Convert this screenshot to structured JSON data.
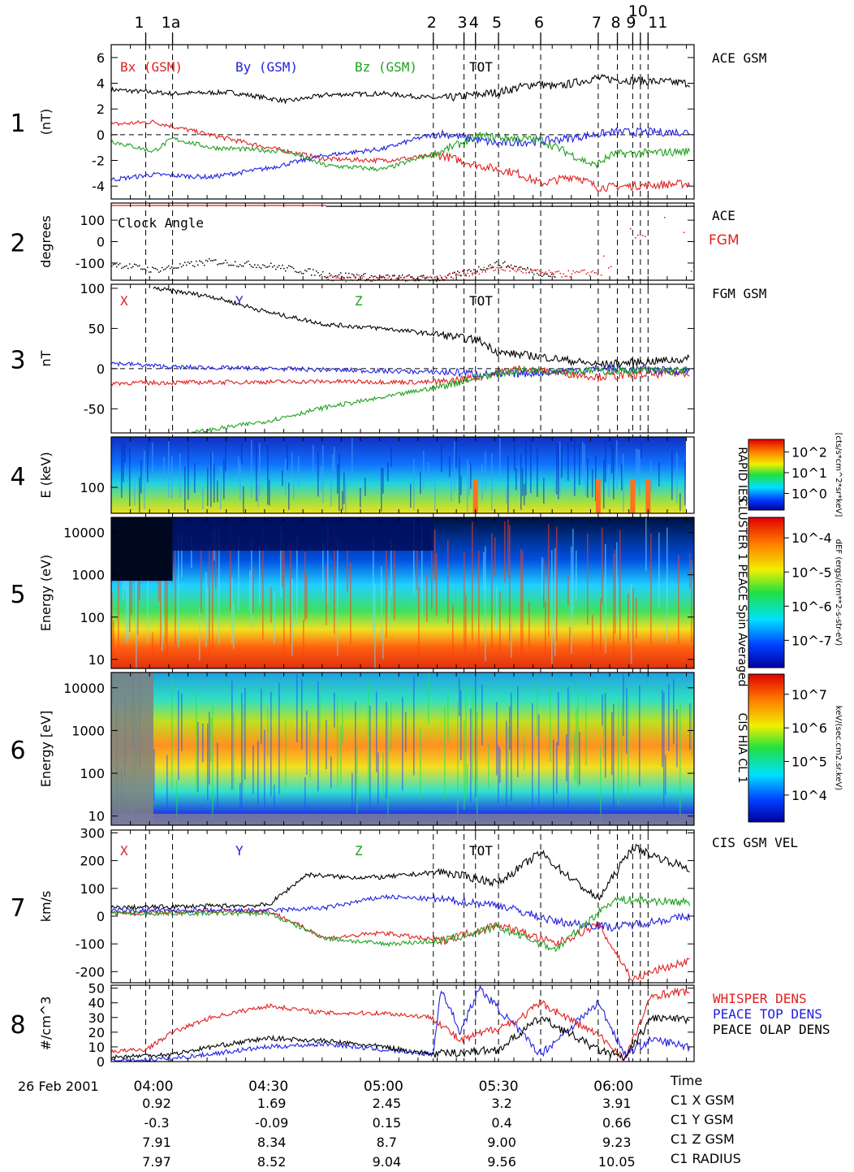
{
  "chart_data": {
    "type": "line",
    "date_label": "26 Feb 2001",
    "event_markers": [
      {
        "label": "1",
        "time": "03:58"
      },
      {
        "label": "1a",
        "time": "04:05"
      },
      {
        "label": "2",
        "time": "05:13"
      },
      {
        "label": "3",
        "time": "05:21"
      },
      {
        "label": "4",
        "time": "05:24"
      },
      {
        "label": "5",
        "time": "05:30"
      },
      {
        "label": "6",
        "time": "05:41"
      },
      {
        "label": "7",
        "time": "05:56"
      },
      {
        "label": "8",
        "time": "06:01"
      },
      {
        "label": "9",
        "time": "06:05"
      },
      {
        "label": "10",
        "time": "06:07"
      },
      {
        "label": "11",
        "time": "06:09"
      }
    ],
    "time_axis": {
      "ticks": [
        "04:00",
        "04:30",
        "05:00",
        "05:30",
        "06:00"
      ],
      "range": [
        "03:49",
        "06:21"
      ],
      "row_labels": [
        "Time",
        "C1 X GSM",
        "C1 Y GSM",
        "C1 Z GSM",
        "C1 RADIUS"
      ],
      "rows": [
        [
          "0.92",
          "1.69",
          "2.45",
          "3.2",
          "3.91"
        ],
        [
          "-0.3",
          "-0.09",
          "0.15",
          "0.4",
          "0.66"
        ],
        [
          "7.91",
          "8.34",
          "8.7",
          "9.00",
          "9.23"
        ],
        [
          "7.97",
          "8.52",
          "9.04",
          "9.56",
          "10.05"
        ]
      ]
    },
    "panels": [
      {
        "number": "1",
        "ylabel": "(nT)",
        "title": "ACE GSM",
        "ylim": [
          -5,
          7
        ],
        "yticks": [
          "6",
          "4",
          "2",
          "0",
          "-2",
          "-4"
        ],
        "legend": [
          {
            "name": "Bx (GSM)",
            "color": "#e02020"
          },
          {
            "name": "By (GSM)",
            "color": "#2020e0"
          },
          {
            "name": "Bz (GSM)",
            "color": "#20a020"
          },
          {
            "name": "TOT",
            "color": "#000000"
          }
        ],
        "series": [
          {
            "name": "TOT",
            "color": "#000000",
            "t": [
              "03:49",
              "04:05",
              "04:20",
              "04:35",
              "04:45",
              "05:00",
              "05:15",
              "05:30",
              "05:40",
              "05:45",
              "05:55",
              "06:00",
              "06:20"
            ],
            "v": [
              3.5,
              3.2,
              3.3,
              2.6,
              3.1,
              3.2,
              2.8,
              3.3,
              4.0,
              3.7,
              4.4,
              4.3,
              4.0
            ]
          },
          {
            "name": "Bx (GSM)",
            "color": "#e02020",
            "t": [
              "03:49",
              "04:00",
              "04:10",
              "04:30",
              "04:45",
              "05:00",
              "05:15",
              "05:25",
              "05:35",
              "05:41",
              "05:50",
              "05:56",
              "06:20"
            ],
            "v": [
              0.8,
              1.0,
              0.3,
              -1.0,
              -1.9,
              -2.0,
              -1.6,
              -2.4,
              -3.0,
              -3.8,
              -3.2,
              -4.1,
              -3.8
            ]
          },
          {
            "name": "By (GSM)",
            "color": "#2020e0",
            "t": [
              "03:49",
              "04:00",
              "04:15",
              "04:30",
              "04:45",
              "05:00",
              "05:10",
              "05:15",
              "05:30",
              "05:45",
              "06:00",
              "06:20"
            ],
            "v": [
              -3.5,
              -3.1,
              -3.3,
              -2.6,
              -1.6,
              -1.1,
              -0.2,
              0.1,
              -0.7,
              -0.4,
              0.2,
              0.2
            ]
          },
          {
            "name": "Bz (GSM)",
            "color": "#20a020",
            "t": [
              "03:49",
              "04:00",
              "04:05",
              "04:15",
              "04:35",
              "04:45",
              "05:00",
              "05:15",
              "05:25",
              "05:41",
              "05:55",
              "06:00",
              "06:20"
            ],
            "v": [
              -0.5,
              -1.3,
              -0.3,
              -1.0,
              -1.3,
              -2.4,
              -2.7,
              -1.3,
              -0.1,
              -0.4,
              -2.4,
              -1.5,
              -1.3
            ]
          }
        ]
      },
      {
        "number": "2",
        "ylabel": "degrees",
        "title": "Clock Angle",
        "labels_right": [
          {
            "text": "ACE",
            "color": "#000000"
          },
          {
            "text": "FGM",
            "color": "#e02020"
          }
        ],
        "ylim": [
          -180,
          180
        ],
        "yticks": [
          "100",
          "0",
          "-100"
        ],
        "series": [
          {
            "name": "ACE",
            "color": "#000000",
            "t": [
              "03:49",
              "04:00",
              "04:15",
              "04:30",
              "04:45",
              "05:00",
              "05:15",
              "05:30",
              "05:45"
            ],
            "v": [
              -100,
              -130,
              -90,
              -110,
              -150,
              -165,
              -170,
              -100,
              -160
            ]
          },
          {
            "name": "FGM",
            "color": "#e02020",
            "t": [
              "04:45",
              "05:00",
              "05:15",
              "05:30",
              "05:45",
              "05:56"
            ],
            "v": [
              -170,
              -168,
              -165,
              -120,
              -150,
              -140
            ]
          }
        ]
      },
      {
        "number": "3",
        "ylabel": "nT",
        "title": "FGM GSM",
        "ylim": [
          -80,
          105
        ],
        "yticks": [
          "100",
          "50",
          "0",
          "-50"
        ],
        "legend": [
          {
            "name": "X",
            "color": "#e02020"
          },
          {
            "name": "Y",
            "color": "#2020e0"
          },
          {
            "name": "Z",
            "color": "#20a020"
          },
          {
            "name": "TOT",
            "color": "#000000"
          }
        ],
        "series": [
          {
            "name": "TOT",
            "color": "#000000",
            "t": [
              "04:00",
              "04:15",
              "04:30",
              "04:45",
              "05:00",
              "05:15",
              "05:25",
              "05:30",
              "05:41",
              "05:56",
              "06:20"
            ],
            "v": [
              100,
              90,
              70,
              55,
              50,
              42,
              35,
              20,
              15,
              5,
              12
            ]
          },
          {
            "name": "X",
            "color": "#e02020",
            "t": [
              "03:49",
              "04:15",
              "04:45",
              "05:15",
              "05:25",
              "05:35",
              "05:56",
              "06:20"
            ],
            "v": [
              -18,
              -17,
              -16,
              -17,
              -10,
              0,
              -10,
              -5
            ]
          },
          {
            "name": "Y",
            "color": "#2020e0",
            "t": [
              "03:49",
              "04:05",
              "04:30",
              "05:00",
              "05:20",
              "05:30",
              "05:56",
              "06:20"
            ],
            "v": [
              7,
              2,
              0,
              -3,
              -5,
              -8,
              0,
              -3
            ]
          },
          {
            "name": "Z",
            "color": "#20a020",
            "t": [
              "04:10",
              "04:30",
              "04:45",
              "05:00",
              "05:15",
              "05:25",
              "05:35",
              "05:56",
              "06:20"
            ],
            "v": [
              -80,
              -65,
              -48,
              -36,
              -22,
              -10,
              -2,
              -3,
              -2
            ]
          }
        ]
      },
      {
        "number": "4",
        "ylabel": "E (keV)",
        "ytick": "100",
        "colorbar": {
          "title": "RAPID IES",
          "unit": "[cts/s*cm^2*sr*keV]",
          "ticks": [
            "10^2",
            "10^1",
            "10^0"
          ]
        }
      },
      {
        "number": "5",
        "ylabel": "Energy (eV)",
        "yticks": [
          "10000",
          "1000",
          "100",
          "10"
        ],
        "colorbar": {
          "title": "CLUSTER 1 PEACE Spin Averaged",
          "unit": "dEF (ergs/(cm**2-s-str-eV)",
          "ticks": [
            "10^-4",
            "10^-5",
            "10^-6",
            "10^-7"
          ]
        }
      },
      {
        "number": "6",
        "ylabel": "Energy [eV]",
        "yticks": [
          "10000",
          "1000",
          "100",
          "10"
        ],
        "colorbar": {
          "title": "CIS HIA CL 1",
          "unit": "keV/(sec.cm2.sr.keV)",
          "ticks": [
            "10^7",
            "10^6",
            "10^5",
            "10^4"
          ]
        }
      },
      {
        "number": "7",
        "ylabel": "km/s",
        "title": "CIS GSM VEL",
        "ylim": [
          -240,
          310
        ],
        "yticks": [
          "300",
          "200",
          "100",
          "0",
          "-100",
          "-200"
        ],
        "legend": [
          {
            "name": "X",
            "color": "#e02020"
          },
          {
            "name": "Y",
            "color": "#2020e0"
          },
          {
            "name": "Z",
            "color": "#20a020"
          },
          {
            "name": "TOT",
            "color": "#000000"
          }
        ],
        "series": [
          {
            "name": "TOT",
            "color": "#000000",
            "t": [
              "03:49",
              "04:30",
              "04:40",
              "04:50",
              "05:00",
              "05:15",
              "05:30",
              "05:41",
              "05:45",
              "05:56",
              "06:05",
              "06:10",
              "06:20"
            ],
            "v": [
              30,
              40,
              150,
              140,
              140,
              160,
              120,
              230,
              180,
              60,
              250,
              220,
              170
            ]
          },
          {
            "name": "X",
            "color": "#e02020",
            "t": [
              "03:49",
              "04:30",
              "04:45",
              "05:00",
              "05:15",
              "05:30",
              "05:45",
              "05:56",
              "06:05",
              "06:10",
              "06:20"
            ],
            "v": [
              10,
              20,
              -80,
              -60,
              -90,
              -30,
              -100,
              -30,
              -230,
              -200,
              -160
            ]
          },
          {
            "name": "Y",
            "color": "#2020e0",
            "t": [
              "03:49",
              "04:30",
              "04:45",
              "05:00",
              "05:15",
              "05:30",
              "05:45",
              "06:00",
              "06:20"
            ],
            "v": [
              20,
              20,
              30,
              70,
              60,
              40,
              -20,
              -40,
              0
            ]
          },
          {
            "name": "Z",
            "color": "#20a020",
            "t": [
              "03:49",
              "04:30",
              "04:45",
              "05:00",
              "05:15",
              "05:30",
              "05:45",
              "06:00",
              "06:20"
            ],
            "v": [
              10,
              10,
              -80,
              -100,
              -90,
              -40,
              -120,
              60,
              50
            ]
          }
        ]
      },
      {
        "number": "8",
        "ylabel": "#/cm^3",
        "ylim": [
          0,
          52
        ],
        "yticks": [
          "50",
          "40",
          "30",
          "20",
          "10",
          "0"
        ],
        "legend": [
          {
            "name": "WHISPER DENS",
            "color": "#e02020"
          },
          {
            "name": "PEACE TOP DENS",
            "color": "#2020e0"
          },
          {
            "name": "PEACE OLAP DENS",
            "color": "#000000"
          }
        ],
        "series": [
          {
            "name": "WHISPER DENS",
            "color": "#e02020",
            "t": [
              "03:49",
              "03:58",
              "04:05",
              "04:15",
              "04:30",
              "04:45",
              "05:00",
              "05:13",
              "05:20",
              "05:35",
              "05:41",
              "05:56",
              "06:03",
              "06:10",
              "06:20"
            ],
            "v": [
              7,
              8,
              20,
              30,
              38,
              33,
              33,
              30,
              14,
              28,
              40,
              18,
              2,
              45,
              48
            ]
          },
          {
            "name": "PEACE TOP DENS",
            "color": "#2020e0",
            "t": [
              "03:49",
              "04:05",
              "04:30",
              "04:45",
              "05:00",
              "05:13",
              "05:15",
              "05:20",
              "05:25",
              "05:41",
              "05:56",
              "06:03",
              "06:10",
              "06:20"
            ],
            "v": [
              0,
              2,
              10,
              12,
              8,
              5,
              50,
              20,
              50,
              5,
              40,
              5,
              15,
              10
            ]
          },
          {
            "name": "PEACE OLAP DENS",
            "color": "#000000",
            "t": [
              "03:49",
              "04:05",
              "04:15",
              "04:30",
              "04:45",
              "05:00",
              "05:13",
              "05:30",
              "05:41",
              "05:56",
              "06:03",
              "06:10",
              "06:20"
            ],
            "v": [
              3,
              5,
              10,
              16,
              14,
              10,
              5,
              8,
              30,
              8,
              2,
              30,
              28
            ]
          }
        ]
      }
    ]
  }
}
